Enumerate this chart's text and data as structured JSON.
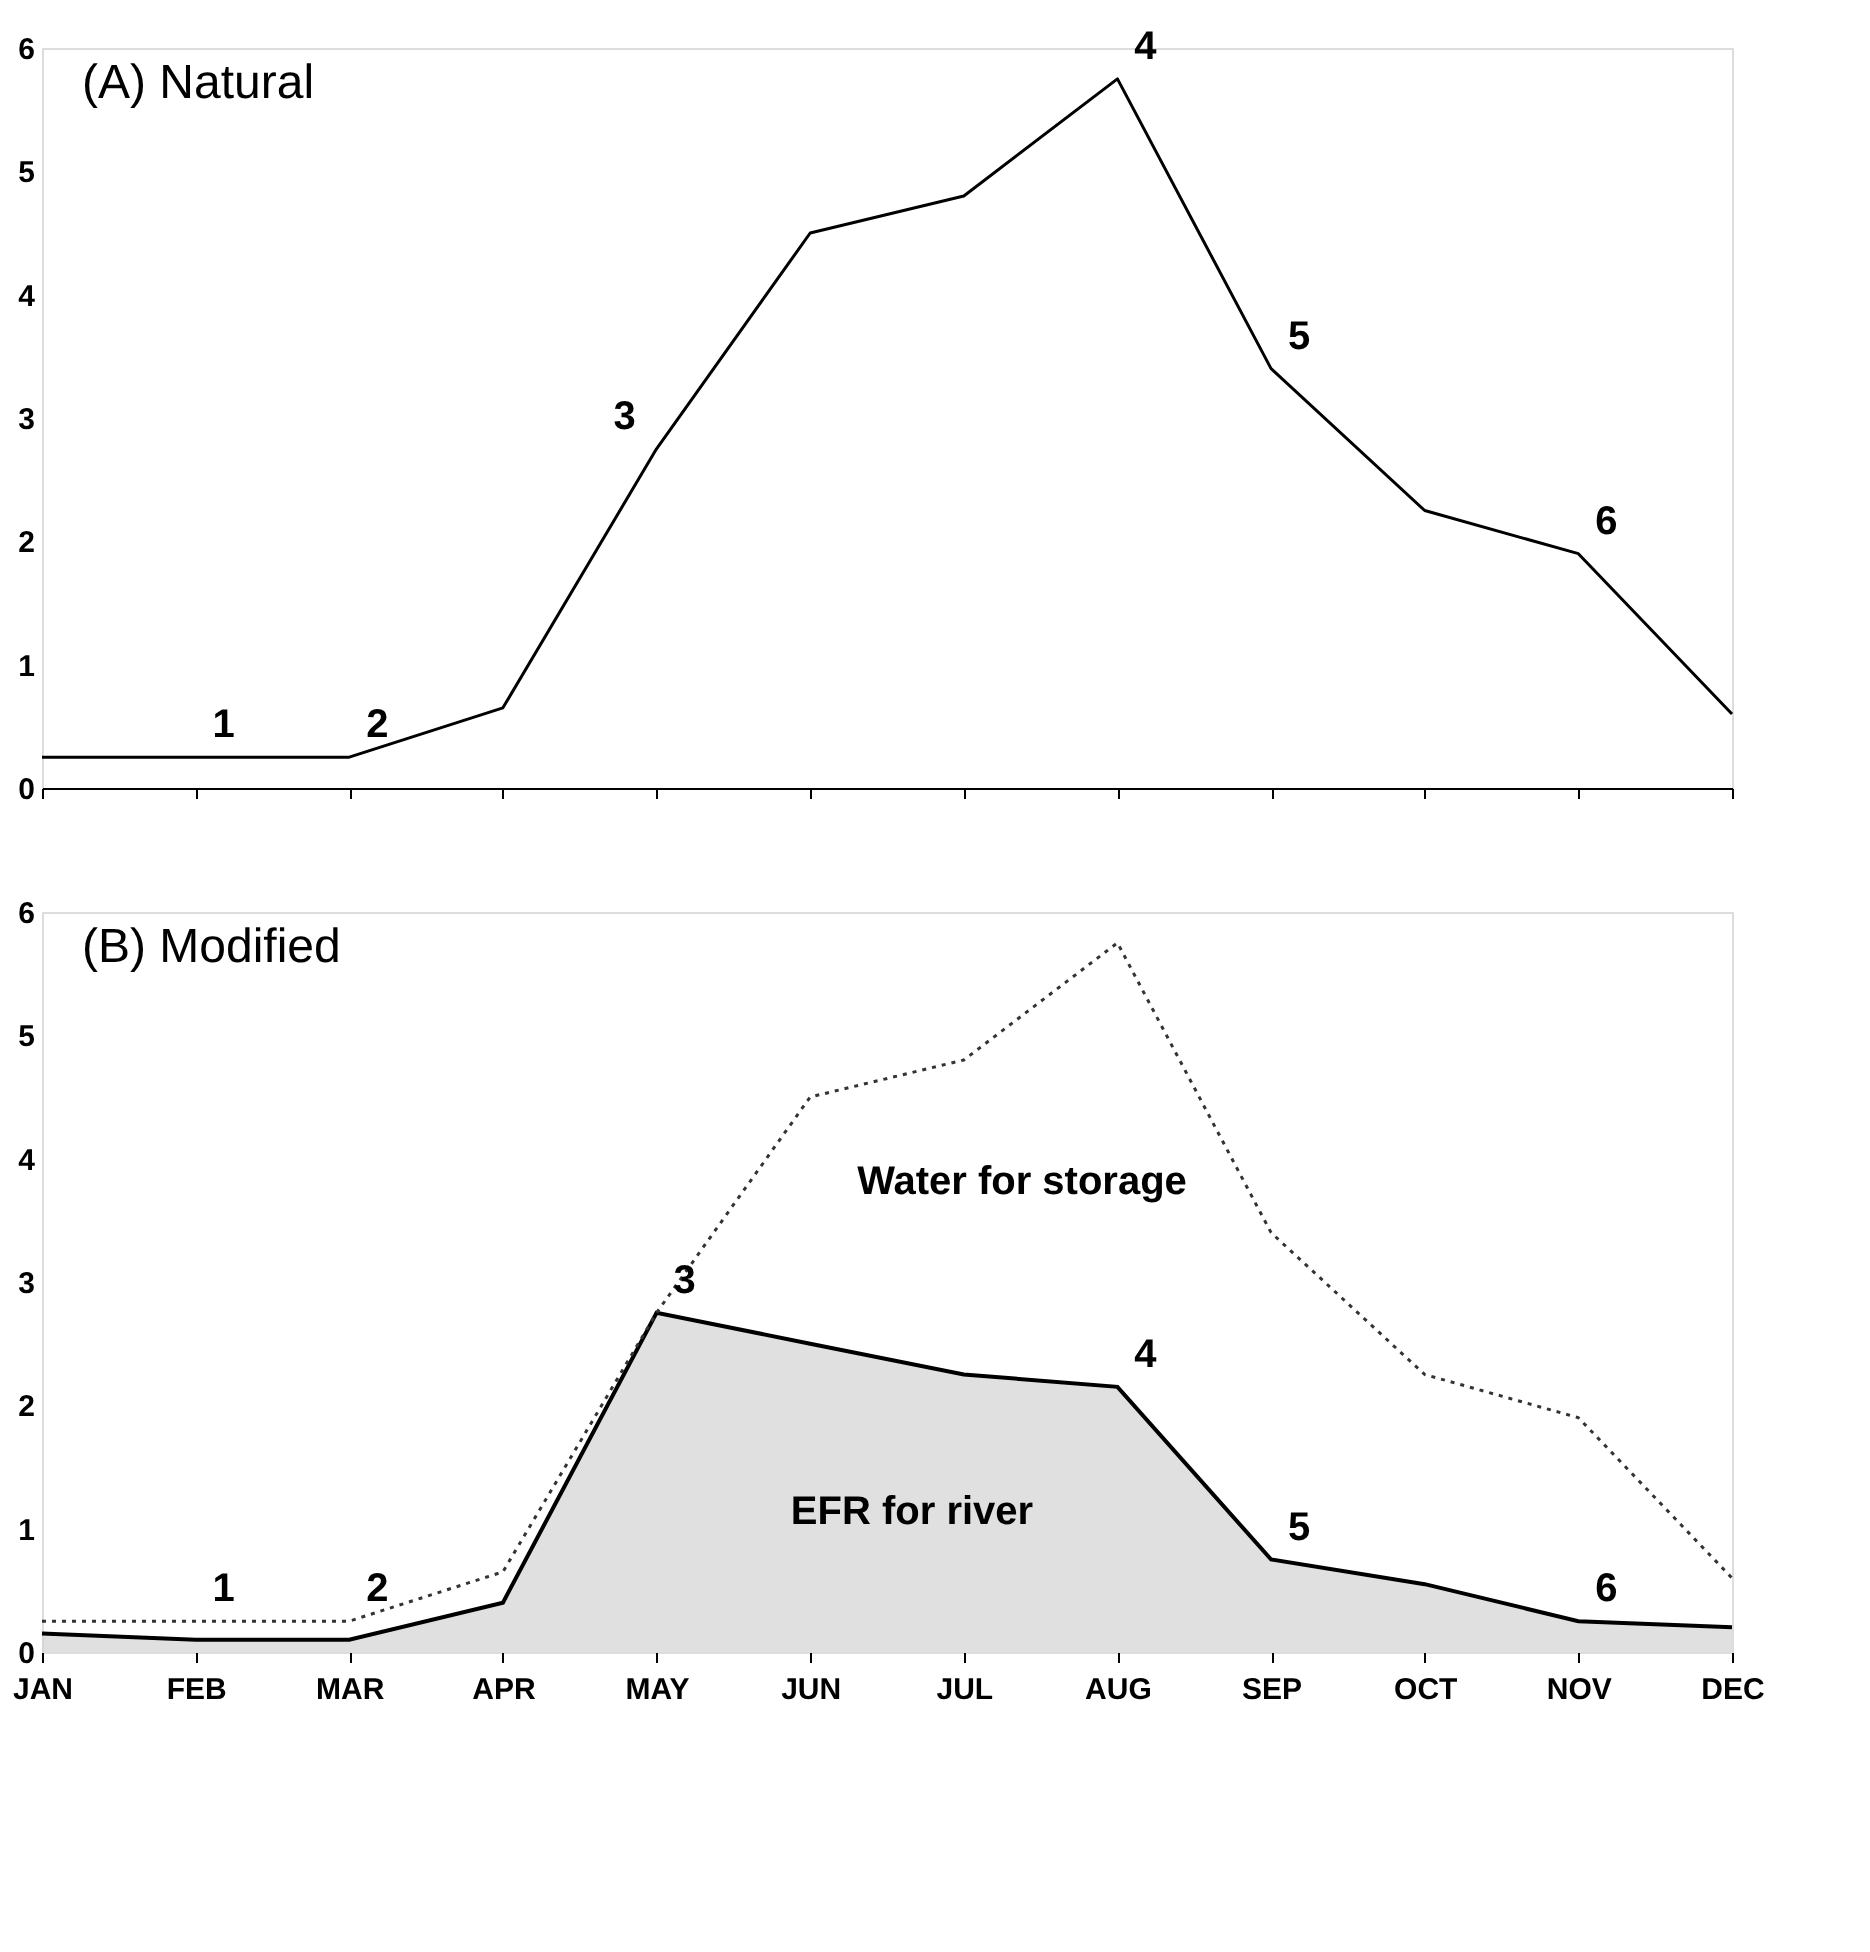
{
  "chart_data": [
    {
      "type": "line",
      "title": "(A) Natural",
      "categories": [
        "JAN",
        "FEB",
        "MAR",
        "APR",
        "MAY",
        "JUN",
        "JUL",
        "AUG",
        "SEP",
        "OCT",
        "NOV",
        "DEC"
      ],
      "series": [
        {
          "color": "#000000",
          "values": [
            0.25,
            0.25,
            0.25,
            0.65,
            2.75,
            4.5,
            4.8,
            5.75,
            3.4,
            2.25,
            1.9,
            0.6
          ],
          "line_style": "solid"
        }
      ],
      "ylim": [
        0,
        6
      ],
      "yticks": [
        0,
        1,
        2,
        3,
        4,
        5,
        6
      ],
      "tick_labels": "y",
      "grid": false,
      "annotations": [
        {
          "text": "1",
          "x": "FEB",
          "y": 0.25
        },
        {
          "text": "2",
          "x": "MAR",
          "y": 0.25
        },
        {
          "text": "3",
          "x": "MAY",
          "y": 2.75
        },
        {
          "text": "4",
          "x": "AUG",
          "y": 5.75
        },
        {
          "text": "5",
          "x": "SEP",
          "y": 3.4
        },
        {
          "text": "6",
          "x": "NOV",
          "y": 1.9
        }
      ]
    },
    {
      "type": "line",
      "title": "(B) Modified",
      "categories": [
        "JAN",
        "FEB",
        "MAR",
        "APR",
        "MAY",
        "JUN",
        "JUL",
        "AUG",
        "SEP",
        "OCT",
        "NOV",
        "DEC"
      ],
      "series": [
        {
          "type": "area",
          "color": "#d3d3d3",
          "values": [
            0.15,
            0.1,
            0.1,
            0.4,
            2.75,
            2.5,
            2.25,
            2.15,
            0.75,
            0.55,
            0.25,
            0.2
          ],
          "line_style": "solid"
        },
        {
          "type": "line",
          "color": "#333333",
          "values": [
            0.25,
            0.25,
            0.25,
            0.65,
            2.75,
            4.5,
            4.8,
            5.75,
            3.4,
            2.25,
            1.9,
            0.6
          ],
          "line_style": "dotted"
        }
      ],
      "ylim": [
        0,
        6
      ],
      "yticks": [
        0,
        1,
        2,
        3,
        4,
        5,
        6
      ],
      "grid": false,
      "annotations": [
        {
          "text": "1",
          "x": "FEB",
          "y": 0.25
        },
        {
          "text": "2",
          "x": "MAR",
          "y": 0.25
        },
        {
          "text": "3",
          "x": "MAY",
          "y": 2.75
        },
        {
          "text": "4",
          "x": "AUG",
          "y": 2.15
        },
        {
          "text": "5",
          "x": "SEP",
          "y": 0.75
        },
        {
          "text": "6",
          "x": "NOV",
          "y": 0.25
        },
        "Water for storage",
        "EFR for river"
      ]
    }
  ]
}
